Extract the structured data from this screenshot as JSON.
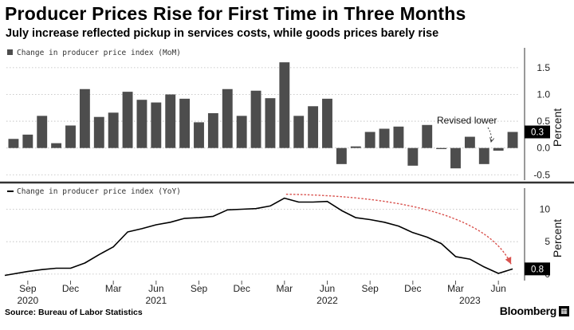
{
  "title": "Producer Prices Rise for First Time in Three Months",
  "subtitle": "July increase reflected pickup in services costs, while goods prices barely rise",
  "source": "Source: Bureau of Labor Statistics",
  "brand": "Bloomberg",
  "colors": {
    "bar": "#4d4d4d",
    "line": "#000000",
    "arrow": "#d9534f",
    "badge": "#000000",
    "grid": "#bbbbbb",
    "divider": "#333333"
  },
  "chart_data": [
    {
      "type": "bar",
      "legend": "Change in producer price index (MoM)",
      "ylabel": "Percent",
      "ylim": [
        -0.6,
        1.9
      ],
      "yticks": [
        -0.5,
        0.0,
        0.5,
        1.0,
        1.5
      ],
      "ytick_labels": [
        "-0.5",
        "0.0",
        "0.5",
        "1.0",
        "1.5"
      ],
      "grid": true,
      "categories": [
        "2020-08",
        "2020-09",
        "2020-10",
        "2020-11",
        "2020-12",
        "2021-01",
        "2021-02",
        "2021-03",
        "2021-04",
        "2021-05",
        "2021-06",
        "2021-07",
        "2021-08",
        "2021-09",
        "2021-10",
        "2021-11",
        "2021-12",
        "2022-01",
        "2022-02",
        "2022-03",
        "2022-04",
        "2022-05",
        "2022-06",
        "2022-07",
        "2022-08",
        "2022-09",
        "2022-10",
        "2022-11",
        "2022-12",
        "2023-01",
        "2023-02",
        "2023-03",
        "2023-04",
        "2023-05",
        "2023-06",
        "2023-07"
      ],
      "values": [
        0.17,
        0.25,
        0.6,
        0.09,
        0.42,
        1.1,
        0.58,
        0.66,
        1.05,
        0.9,
        0.85,
        1.0,
        0.92,
        0.48,
        0.65,
        1.1,
        0.6,
        1.07,
        0.93,
        1.6,
        0.6,
        0.78,
        0.92,
        -0.3,
        0.03,
        0.3,
        0.36,
        0.4,
        -0.33,
        0.43,
        -0.02,
        -0.38,
        0.21,
        -0.3,
        -0.05,
        0.3
      ],
      "last_value_label": "0.3",
      "annotation": "Revised lower"
    },
    {
      "type": "line",
      "legend": "Change in producer price index (YoY)",
      "ylabel": "Percent",
      "ylim": [
        -1.0,
        13.5
      ],
      "yticks": [
        0,
        5,
        10
      ],
      "ytick_labels": [
        "0",
        "5",
        "10"
      ],
      "grid": true,
      "x": [
        "2020-08",
        "2020-09",
        "2020-10",
        "2020-11",
        "2020-12",
        "2021-01",
        "2021-02",
        "2021-03",
        "2021-04",
        "2021-05",
        "2021-06",
        "2021-07",
        "2021-08",
        "2021-09",
        "2021-10",
        "2021-11",
        "2021-12",
        "2022-01",
        "2022-02",
        "2022-03",
        "2022-04",
        "2022-05",
        "2022-06",
        "2022-07",
        "2022-08",
        "2022-09",
        "2022-10",
        "2022-11",
        "2022-12",
        "2023-01",
        "2023-02",
        "2023-03",
        "2023-04",
        "2023-05",
        "2023-06",
        "2023-07"
      ],
      "values": [
        -0.2,
        0.4,
        0.7,
        0.9,
        0.9,
        1.7,
        3.0,
        4.2,
        6.5,
        7.0,
        7.6,
        8.0,
        8.6,
        8.7,
        8.9,
        9.9,
        10.0,
        10.1,
        10.5,
        11.7,
        11.1,
        11.1,
        11.2,
        9.8,
        8.7,
        8.4,
        8.0,
        7.4,
        6.4,
        5.7,
        4.7,
        2.7,
        2.3,
        1.1,
        0.1,
        0.8
      ],
      "last_value_label": "0.8"
    }
  ],
  "x_axis": {
    "ticks": [
      {
        "at": "2020-09",
        "label": "Sep"
      },
      {
        "at": "2020-12",
        "label": "Dec"
      },
      {
        "at": "2021-03",
        "label": "Mar"
      },
      {
        "at": "2021-06",
        "label": "Jun"
      },
      {
        "at": "2021-09",
        "label": "Sep"
      },
      {
        "at": "2021-12",
        "label": "Dec"
      },
      {
        "at": "2022-03",
        "label": "Mar"
      },
      {
        "at": "2022-06",
        "label": "Jun"
      },
      {
        "at": "2022-09",
        "label": "Sep"
      },
      {
        "at": "2022-12",
        "label": "Dec"
      },
      {
        "at": "2023-03",
        "label": "Mar"
      },
      {
        "at": "2023-06",
        "label": "Jun"
      }
    ],
    "years": [
      {
        "at": "2020-09",
        "label": "2020"
      },
      {
        "at": "2021-06",
        "label": "2021"
      },
      {
        "at": "2022-06",
        "label": "2022"
      },
      {
        "at": "2023-04",
        "label": "2023"
      }
    ]
  }
}
